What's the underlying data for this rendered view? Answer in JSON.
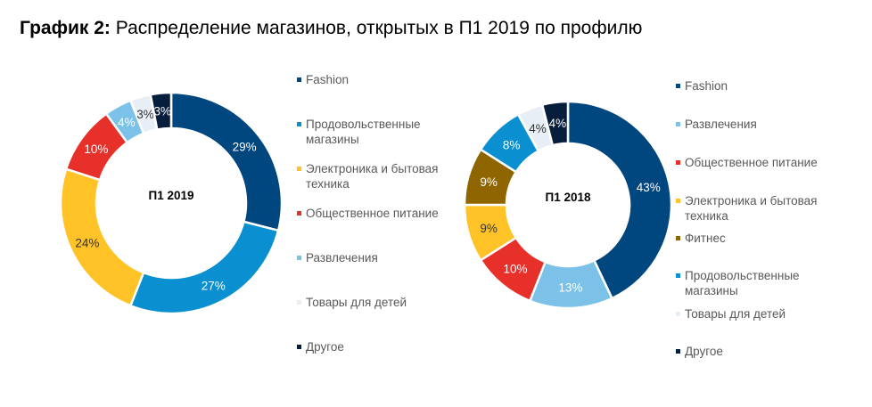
{
  "title": {
    "bold": "График 2:",
    "rest": " Распределение магазинов, открытых в П1 2019 по профилю"
  },
  "chart_data": [
    {
      "type": "pie",
      "center_label": "П1 2019",
      "slices": [
        {
          "name": "Fashion",
          "value": 29,
          "label": "29%",
          "color": "#00467F"
        },
        {
          "name": "Продовольственные магазины",
          "value": 27,
          "label": "27%",
          "color": "#0A8FD0"
        },
        {
          "name": "Электроника и бытовая техника",
          "value": 24,
          "label": "24%",
          "color": "#FFC328"
        },
        {
          "name": "Общественное питание",
          "value": 10,
          "label": "10%",
          "color": "#E8302A"
        },
        {
          "name": "Развлечения",
          "value": 4,
          "label": "4%",
          "color": "#7CC2E8"
        },
        {
          "name": "Товары для детей",
          "value": 3,
          "label": "3%",
          "color": "#E8EEF6"
        },
        {
          "name": "Другое",
          "value": 3,
          "label": "3%",
          "color": "#071D3C"
        }
      ]
    },
    {
      "type": "pie",
      "center_label": "П1 2018",
      "slices": [
        {
          "name": "Fashion",
          "value": 43,
          "label": "43%",
          "color": "#00467F"
        },
        {
          "name": "Развлечения",
          "value": 13,
          "label": "13%",
          "color": "#7CC2E8"
        },
        {
          "name": "Общественное питание",
          "value": 10,
          "label": "10%",
          "color": "#E8302A"
        },
        {
          "name": "Электроника и бытовая техника",
          "value": 9,
          "label": "9%",
          "color": "#FFC328"
        },
        {
          "name": "Фитнес",
          "value": 9,
          "label": "9%",
          "color": "#8F6500"
        },
        {
          "name": "Продовольственные магазины",
          "value": 8,
          "label": "8%",
          "color": "#0A8FD0"
        },
        {
          "name": "Товары для детей",
          "value": 4,
          "label": "4%",
          "color": "#E8EEF6"
        },
        {
          "name": "Другое",
          "value": 4,
          "label": "4%",
          "color": "#071D3C"
        }
      ]
    }
  ],
  "legends": [
    {
      "items": [
        {
          "label": "Fashion",
          "color": "#00467F"
        },
        {
          "label": "Продовольственные магазины",
          "color": "#0A8FD0"
        },
        {
          "label": "Электроника и бытовая техника",
          "color": "#FFC328"
        },
        {
          "label": "Общественное питание",
          "color": "#E8302A"
        },
        {
          "label": "Развлечения",
          "color": "#7CC2E8"
        },
        {
          "label": "Товары для детей",
          "color": "#E8EEF6"
        },
        {
          "label": "Другое",
          "color": "#071D3C"
        }
      ]
    },
    {
      "items": [
        {
          "label": "Fashion",
          "color": "#00467F"
        },
        {
          "label": "Развлечения",
          "color": "#7CC2E8"
        },
        {
          "label": "Общественное питание",
          "color": "#E8302A"
        },
        {
          "label": "Электроника и бытовая техника",
          "color": "#FFC328"
        },
        {
          "label": "Фитнес",
          "color": "#8F6500"
        },
        {
          "label": "Продовольственные магазины",
          "color": "#0A8FD0"
        },
        {
          "label": "Товары для детей",
          "color": "#E8EEF6"
        },
        {
          "label": "Другое",
          "color": "#071D3C"
        }
      ]
    }
  ]
}
